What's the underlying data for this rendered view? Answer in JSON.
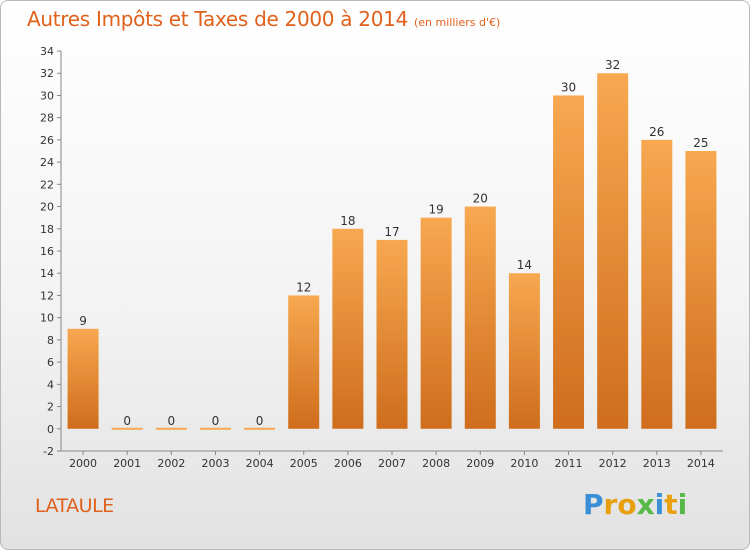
{
  "header": {
    "title": "Autres Impôts et Taxes de 2000 à 2014",
    "subtitle": "(en milliers d'€)"
  },
  "footer": {
    "commune": "LATAULE",
    "logo": {
      "letters": [
        {
          "char": "P",
          "color": "#3a8fd6"
        },
        {
          "char": "r",
          "color": "#e8a010"
        },
        {
          "char": "o",
          "color": "#e8a010"
        },
        {
          "char": "x",
          "color": "#56b847"
        },
        {
          "char": "i",
          "color": "#3a8fd6"
        },
        {
          "char": "t",
          "color": "#e8a010"
        },
        {
          "char": "i",
          "color": "#56b847"
        }
      ]
    }
  },
  "chart_data": {
    "type": "bar",
    "categories": [
      "2000",
      "2001",
      "2002",
      "2003",
      "2004",
      "2005",
      "2006",
      "2007",
      "2008",
      "2009",
      "2010",
      "2011",
      "2012",
      "2013",
      "2014"
    ],
    "values": [
      9,
      0,
      0,
      0,
      0,
      12,
      18,
      17,
      19,
      20,
      14,
      30,
      32,
      26,
      25
    ],
    "value_labels": [
      "9",
      "0",
      "0",
      "0",
      "0",
      "12",
      "18",
      "17",
      "19",
      "20",
      "14",
      "30",
      "32",
      "26",
      "25"
    ],
    "y_ticks": [
      "-2",
      "0",
      "2",
      "4",
      "6",
      "8",
      "10",
      "12",
      "14",
      "16",
      "18",
      "20",
      "22",
      "24",
      "26",
      "28",
      "30",
      "32",
      "34"
    ],
    "ylim": [
      -2,
      34
    ],
    "grid": false,
    "colors": {
      "bar_light": "#f7a850",
      "bar_dark": "#cf6d1c",
      "axis": "#888888"
    }
  }
}
